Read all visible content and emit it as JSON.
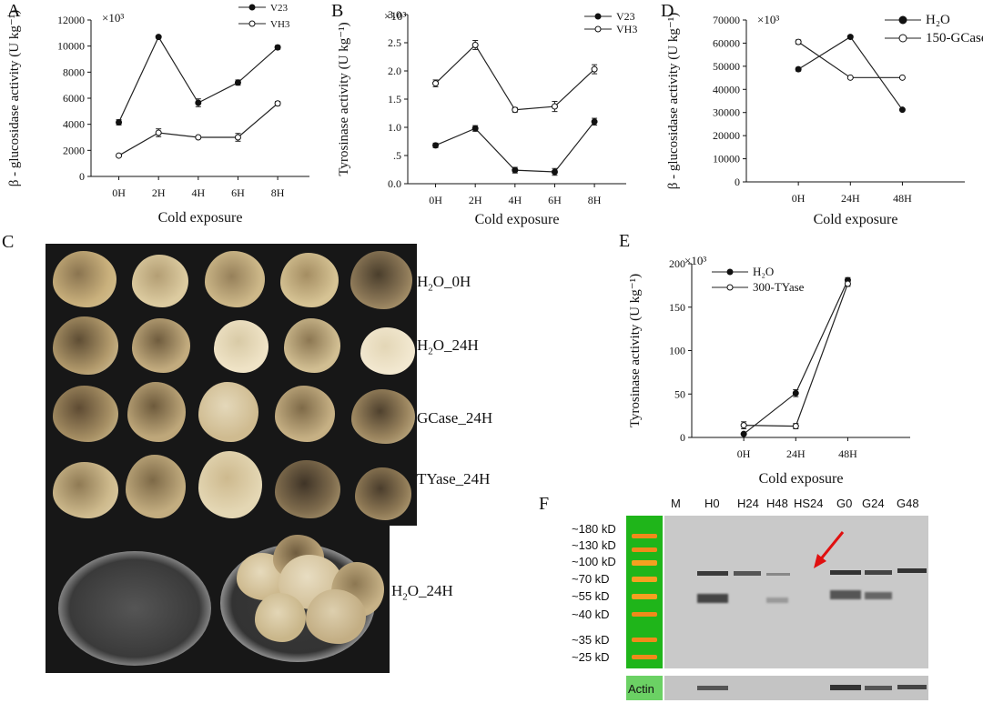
{
  "chart_data": [
    {
      "id": "A",
      "type": "line",
      "panel_letter": "A",
      "exponent": "×10³",
      "ylabel": "β - glucosidase activity (U kg⁻¹)",
      "xlabel": "Cold exposure",
      "categories": [
        "0H",
        "2H",
        "4H",
        "6H",
        "8H"
      ],
      "yticks": [
        "0",
        "2000",
        "4000",
        "6000",
        "8000",
        "10000",
        "12000"
      ],
      "ylim": [
        0,
        12000
      ],
      "series": [
        {
          "name": "V23",
          "marker": "filled",
          "values": [
            4150,
            10700,
            5650,
            7200,
            9900
          ],
          "err": [
            200,
            80,
            300,
            200,
            150
          ]
        },
        {
          "name": "VH3",
          "marker": "open",
          "values": [
            1600,
            3350,
            3000,
            3000,
            5600
          ],
          "err": [
            100,
            300,
            80,
            300,
            150
          ]
        }
      ]
    },
    {
      "id": "B",
      "type": "line",
      "panel_letter": "B",
      "exponent": "×10³",
      "ylabel": "Tyrosinase activity (U kg⁻¹)",
      "xlabel": "Cold exposure",
      "categories": [
        "0H",
        "2H",
        "4H",
        "6H",
        "8H"
      ],
      "yticks": [
        "0.0",
        ".5",
        "1.0",
        "1.5",
        "2.0",
        "2.5",
        "3.0"
      ],
      "ylim": [
        0,
        3.0
      ],
      "series": [
        {
          "name": "V23",
          "marker": "filled",
          "values": [
            0.68,
            0.98,
            0.24,
            0.21,
            1.1
          ],
          "err": [
            0.04,
            0.05,
            0.05,
            0.06,
            0.06
          ]
        },
        {
          "name": "VH3",
          "marker": "open",
          "values": [
            1.78,
            2.46,
            1.31,
            1.37,
            2.03
          ],
          "err": [
            0.06,
            0.08,
            0.04,
            0.09,
            0.08
          ]
        }
      ]
    },
    {
      "id": "D",
      "type": "line",
      "panel_letter": "D",
      "exponent": "×10³",
      "ylabel": "β - glucosidase activity (U kg⁻¹)",
      "xlabel": "Cold exposure",
      "categories": [
        "0H",
        "24H",
        "48H"
      ],
      "yticks": [
        "0",
        "10000",
        "20000",
        "30000",
        "40000",
        "50000",
        "60000",
        "70000"
      ],
      "ylim": [
        0,
        70000
      ],
      "series": [
        {
          "name": "H₂O",
          "marker": "filled",
          "values": [
            48700,
            62700,
            31200
          ],
          "err": [
            800,
            600,
            300
          ]
        },
        {
          "name": "150-GCase",
          "marker": "open",
          "values": [
            60500,
            45100,
            45100
          ],
          "err": [
            900,
            500,
            300
          ]
        }
      ]
    },
    {
      "id": "E",
      "type": "line",
      "panel_letter": "E",
      "exponent": "×10³",
      "ylabel": "Tyrosinase activity (U kg⁻¹)",
      "xlabel": "Cold exposure",
      "categories": [
        "0H",
        "24H",
        "48H"
      ],
      "yticks": [
        "0",
        "50",
        "100",
        "150",
        "200"
      ],
      "ylim": [
        0,
        200
      ],
      "series": [
        {
          "name": "H₂O",
          "marker": "filled",
          "values": [
            4,
            51,
            181
          ],
          "err": [
            1,
            4,
            3
          ]
        },
        {
          "name": "300-TYase",
          "marker": "open",
          "values": [
            14,
            13,
            177
          ],
          "err": [
            4,
            3,
            3
          ]
        }
      ]
    }
  ],
  "panel_c": {
    "letter": "C",
    "rows": [
      {
        "label_main": "H",
        "label_sub": "2",
        "label_rest": "O_0H"
      },
      {
        "label_main": "H",
        "label_sub": "2",
        "label_rest": "O_24H"
      },
      {
        "label_main": "GCase_24H",
        "label_sub": "",
        "label_rest": ""
      },
      {
        "label_main": "TYase_24H",
        "label_sub": "",
        "label_rest": ""
      },
      {
        "label_main": "H",
        "label_sub": "2",
        "label_rest": "O_24H"
      }
    ]
  },
  "panel_f": {
    "letter": "F",
    "lanes": [
      "M",
      "H0",
      "H24",
      "H48",
      "HS24",
      "G0",
      "G24",
      "G48"
    ],
    "markers": [
      "~180 kD",
      "~130 kD",
      "~100 kD",
      "~70 kD",
      "~55 kD",
      "~40 kD",
      "~35 kD",
      "~25 kD"
    ],
    "actin_label": "Actin"
  }
}
